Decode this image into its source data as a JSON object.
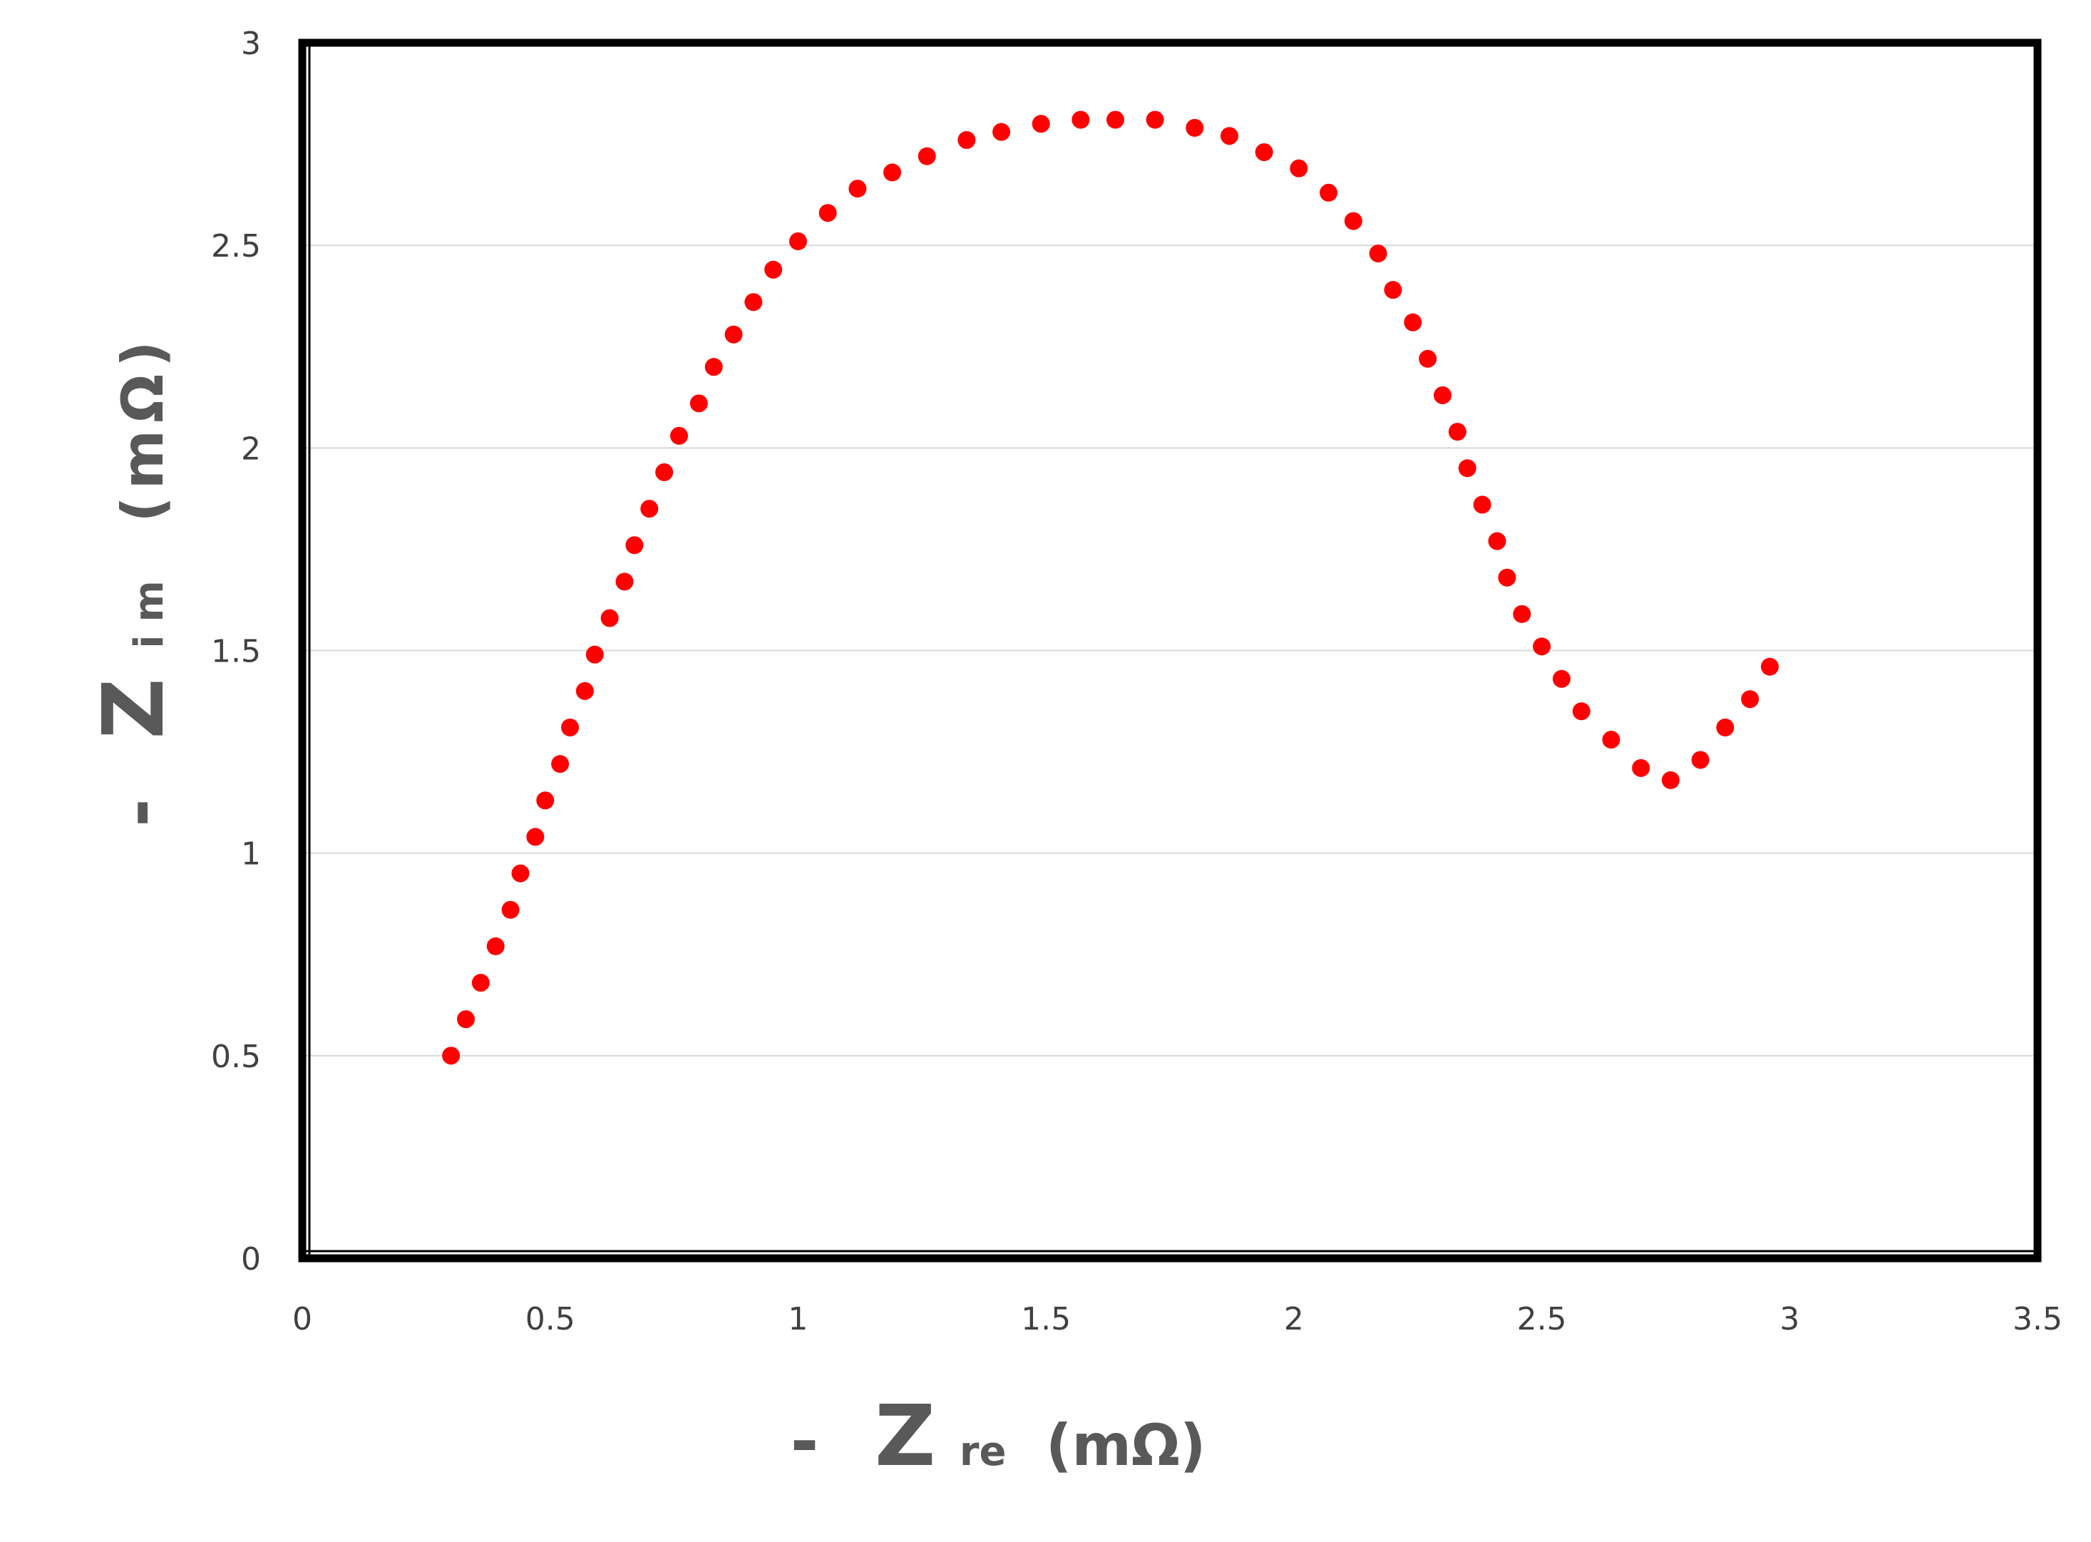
{
  "chart_data": {
    "type": "scatter",
    "title": "",
    "xlabel": {
      "prefix": "-",
      "symbol": "Z",
      "subscript": "re",
      "unit": "(mΩ)"
    },
    "ylabel": {
      "prefix": "-",
      "symbol": "Z",
      "subscript": "im",
      "unit": "(mΩ)"
    },
    "xlim": [
      0,
      3.5
    ],
    "ylim": [
      0,
      3
    ],
    "xticks": [
      "0",
      "0.5",
      "1",
      "1.5",
      "2",
      "2.5",
      "3",
      "3.5"
    ],
    "yticks": [
      "0",
      "0.5",
      "1",
      "1.5",
      "2",
      "2.5",
      "3"
    ],
    "grid": "horizontal",
    "legend": "none",
    "marker_color": "#ff0000",
    "series": [
      {
        "x": [
          0.3,
          0.33,
          0.36,
          0.39,
          0.42,
          0.44,
          0.47,
          0.49,
          0.52,
          0.54,
          0.57,
          0.59,
          0.62,
          0.65,
          0.67,
          0.7,
          0.73,
          0.76,
          0.8,
          0.83,
          0.87,
          0.91,
          0.95,
          1.0,
          1.06,
          1.12,
          1.19,
          1.26,
          1.34,
          1.41,
          1.49,
          1.57,
          1.64,
          1.72,
          1.8,
          1.87,
          1.94,
          2.01,
          2.07,
          2.12,
          2.17,
          2.2,
          2.24,
          2.27,
          2.3,
          2.33,
          2.35,
          2.38,
          2.41,
          2.43,
          2.46,
          2.5,
          2.54,
          2.58,
          2.64,
          2.7,
          2.76,
          2.82,
          2.87,
          2.92,
          2.96
        ],
        "y": [
          0.5,
          0.59,
          0.68,
          0.77,
          0.86,
          0.95,
          1.04,
          1.13,
          1.22,
          1.31,
          1.4,
          1.49,
          1.58,
          1.67,
          1.76,
          1.85,
          1.94,
          2.03,
          2.11,
          2.2,
          2.28,
          2.36,
          2.44,
          2.51,
          2.58,
          2.64,
          2.68,
          2.72,
          2.76,
          2.78,
          2.8,
          2.81,
          2.81,
          2.81,
          2.79,
          2.77,
          2.73,
          2.69,
          2.63,
          2.56,
          2.48,
          2.39,
          2.31,
          2.22,
          2.13,
          2.04,
          1.95,
          1.86,
          1.77,
          1.68,
          1.59,
          1.51,
          1.43,
          1.35,
          1.28,
          1.21,
          1.18,
          1.23,
          1.31,
          1.38,
          1.46
        ]
      }
    ]
  }
}
